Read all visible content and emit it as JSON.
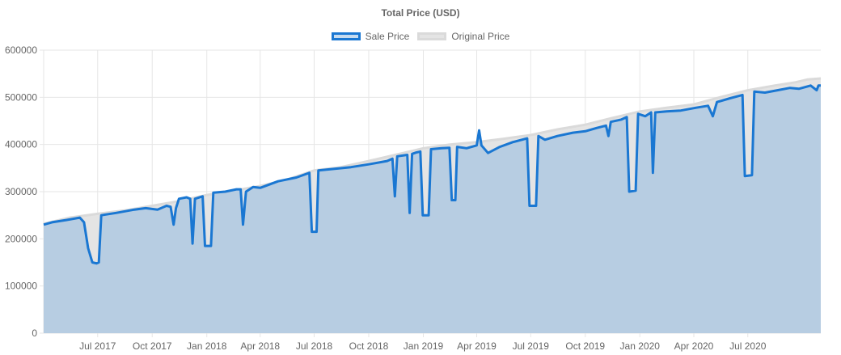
{
  "chart_data": {
    "type": "area",
    "title": "Total Price (USD)",
    "xlabel": "",
    "ylabel": "",
    "ylim": [
      0,
      600000
    ],
    "yticks": [
      0,
      100000,
      200000,
      300000,
      400000,
      500000,
      600000
    ],
    "ytick_labels": [
      "0",
      "100000",
      "200000",
      "300000",
      "400000",
      "500000",
      "600000"
    ],
    "xlim": [
      "2017-04-01",
      "2020-11-01"
    ],
    "xticks": [
      {
        "date": "2017-07-01",
        "label": "Jul 2017"
      },
      {
        "date": "2017-10-01",
        "label": "Oct 2017"
      },
      {
        "date": "2018-01-01",
        "label": "Jan 2018"
      },
      {
        "date": "2018-04-01",
        "label": "Apr 2018"
      },
      {
        "date": "2018-07-01",
        "label": "Jul 2018"
      },
      {
        "date": "2018-10-01",
        "label": "Oct 2018"
      },
      {
        "date": "2019-01-01",
        "label": "Jan 2019"
      },
      {
        "date": "2019-04-01",
        "label": "Apr 2019"
      },
      {
        "date": "2019-07-01",
        "label": "Jul 2019"
      },
      {
        "date": "2019-10-01",
        "label": "Oct 2019"
      },
      {
        "date": "2020-01-01",
        "label": "Jan 2020"
      },
      {
        "date": "2020-04-01",
        "label": "Apr 2020"
      },
      {
        "date": "2020-07-01",
        "label": "Jul 2020"
      }
    ],
    "grid": true,
    "legend_position": "top",
    "colors": {
      "sale_line": "#1a77d2",
      "sale_fill": "#b7cde2",
      "original_line": "#dadada",
      "original_fill": "#e4e4e4",
      "grid": "#e6e6e6"
    },
    "series": [
      {
        "name": "Original Price",
        "points": [
          [
            "2017-04-01",
            232000
          ],
          [
            "2017-05-15",
            245000
          ],
          [
            "2017-07-01",
            253000
          ],
          [
            "2017-08-15",
            260000
          ],
          [
            "2017-10-01",
            270000
          ],
          [
            "2017-11-15",
            280000
          ],
          [
            "2018-01-01",
            293000
          ],
          [
            "2018-02-15",
            302000
          ],
          [
            "2018-04-01",
            312000
          ],
          [
            "2018-05-15",
            325000
          ],
          [
            "2018-07-01",
            345000
          ],
          [
            "2018-08-15",
            352000
          ],
          [
            "2018-10-01",
            365000
          ],
          [
            "2018-11-15",
            378000
          ],
          [
            "2019-01-01",
            392000
          ],
          [
            "2019-02-15",
            400000
          ],
          [
            "2019-04-01",
            405000
          ],
          [
            "2019-05-15",
            412000
          ],
          [
            "2019-07-01",
            420000
          ],
          [
            "2019-08-15",
            432000
          ],
          [
            "2019-10-01",
            442000
          ],
          [
            "2019-11-15",
            456000
          ],
          [
            "2020-01-01",
            470000
          ],
          [
            "2020-02-15",
            478000
          ],
          [
            "2020-04-01",
            485000
          ],
          [
            "2020-05-15",
            500000
          ],
          [
            "2020-07-01",
            515000
          ],
          [
            "2020-08-15",
            525000
          ],
          [
            "2020-09-20",
            532000
          ],
          [
            "2020-10-10",
            538000
          ],
          [
            "2020-11-01",
            540000
          ]
        ]
      },
      {
        "name": "Sale Price",
        "points": [
          [
            "2017-04-01",
            230000
          ],
          [
            "2017-04-15",
            235000
          ],
          [
            "2017-05-10",
            240000
          ],
          [
            "2017-06-01",
            245000
          ],
          [
            "2017-06-08",
            235000
          ],
          [
            "2017-06-15",
            180000
          ],
          [
            "2017-06-22",
            150000
          ],
          [
            "2017-06-29",
            148000
          ],
          [
            "2017-07-03",
            150000
          ],
          [
            "2017-07-07",
            250000
          ],
          [
            "2017-08-01",
            255000
          ],
          [
            "2017-09-01",
            262000
          ],
          [
            "2017-09-20",
            265000
          ],
          [
            "2017-10-10",
            262000
          ],
          [
            "2017-10-25",
            270000
          ],
          [
            "2017-11-01",
            268000
          ],
          [
            "2017-11-06",
            230000
          ],
          [
            "2017-11-10",
            265000
          ],
          [
            "2017-11-15",
            285000
          ],
          [
            "2017-11-28",
            288000
          ],
          [
            "2017-12-04",
            285000
          ],
          [
            "2017-12-08",
            190000
          ],
          [
            "2017-12-12",
            285000
          ],
          [
            "2017-12-25",
            290000
          ],
          [
            "2017-12-29",
            185000
          ],
          [
            "2018-01-08",
            185000
          ],
          [
            "2018-01-12",
            298000
          ],
          [
            "2018-02-01",
            300000
          ],
          [
            "2018-02-20",
            305000
          ],
          [
            "2018-02-27",
            305000
          ],
          [
            "2018-03-03",
            230000
          ],
          [
            "2018-03-08",
            300000
          ],
          [
            "2018-03-20",
            310000
          ],
          [
            "2018-04-01",
            308000
          ],
          [
            "2018-05-01",
            322000
          ],
          [
            "2018-06-01",
            330000
          ],
          [
            "2018-06-23",
            340000
          ],
          [
            "2018-06-27",
            215000
          ],
          [
            "2018-07-05",
            215000
          ],
          [
            "2018-07-08",
            345000
          ],
          [
            "2018-08-01",
            348000
          ],
          [
            "2018-09-01",
            352000
          ],
          [
            "2018-10-01",
            358000
          ],
          [
            "2018-11-01",
            365000
          ],
          [
            "2018-11-10",
            370000
          ],
          [
            "2018-11-14",
            290000
          ],
          [
            "2018-11-18",
            375000
          ],
          [
            "2018-12-05",
            378000
          ],
          [
            "2018-12-09",
            255000
          ],
          [
            "2018-12-13",
            380000
          ],
          [
            "2018-12-20",
            383000
          ],
          [
            "2018-12-27",
            385000
          ],
          [
            "2018-12-31",
            250000
          ],
          [
            "2019-01-10",
            250000
          ],
          [
            "2019-01-14",
            390000
          ],
          [
            "2019-02-01",
            392000
          ],
          [
            "2019-02-14",
            393000
          ],
          [
            "2019-02-18",
            282000
          ],
          [
            "2019-02-24",
            282000
          ],
          [
            "2019-02-27",
            395000
          ],
          [
            "2019-03-15",
            392000
          ],
          [
            "2019-04-01",
            398000
          ],
          [
            "2019-04-05",
            430000
          ],
          [
            "2019-04-09",
            398000
          ],
          [
            "2019-04-20",
            382000
          ],
          [
            "2019-05-10",
            395000
          ],
          [
            "2019-06-01",
            405000
          ],
          [
            "2019-06-25",
            413000
          ],
          [
            "2019-06-29",
            270000
          ],
          [
            "2019-07-10",
            270000
          ],
          [
            "2019-07-14",
            418000
          ],
          [
            "2019-07-25",
            410000
          ],
          [
            "2019-08-15",
            418000
          ],
          [
            "2019-09-10",
            425000
          ],
          [
            "2019-10-01",
            428000
          ],
          [
            "2019-10-20",
            435000
          ],
          [
            "2019-11-05",
            440000
          ],
          [
            "2019-11-09",
            418000
          ],
          [
            "2019-11-13",
            448000
          ],
          [
            "2019-12-01",
            453000
          ],
          [
            "2019-12-10",
            458000
          ],
          [
            "2019-12-14",
            300000
          ],
          [
            "2019-12-25",
            302000
          ],
          [
            "2019-12-29",
            465000
          ],
          [
            "2020-01-10",
            460000
          ],
          [
            "2020-01-20",
            468000
          ],
          [
            "2020-01-23",
            340000
          ],
          [
            "2020-01-27",
            468000
          ],
          [
            "2020-02-15",
            470000
          ],
          [
            "2020-03-10",
            472000
          ],
          [
            "2020-04-05",
            478000
          ],
          [
            "2020-04-25",
            482000
          ],
          [
            "2020-05-03",
            460000
          ],
          [
            "2020-05-10",
            490000
          ],
          [
            "2020-06-01",
            498000
          ],
          [
            "2020-06-22",
            505000
          ],
          [
            "2020-06-26",
            333000
          ],
          [
            "2020-07-08",
            335000
          ],
          [
            "2020-07-12",
            512000
          ],
          [
            "2020-07-30",
            510000
          ],
          [
            "2020-08-20",
            515000
          ],
          [
            "2020-09-10",
            520000
          ],
          [
            "2020-09-25",
            518000
          ],
          [
            "2020-10-15",
            525000
          ],
          [
            "2020-10-25",
            515000
          ],
          [
            "2020-10-28",
            525000
          ],
          [
            "2020-11-01",
            525000
          ]
        ]
      }
    ]
  }
}
